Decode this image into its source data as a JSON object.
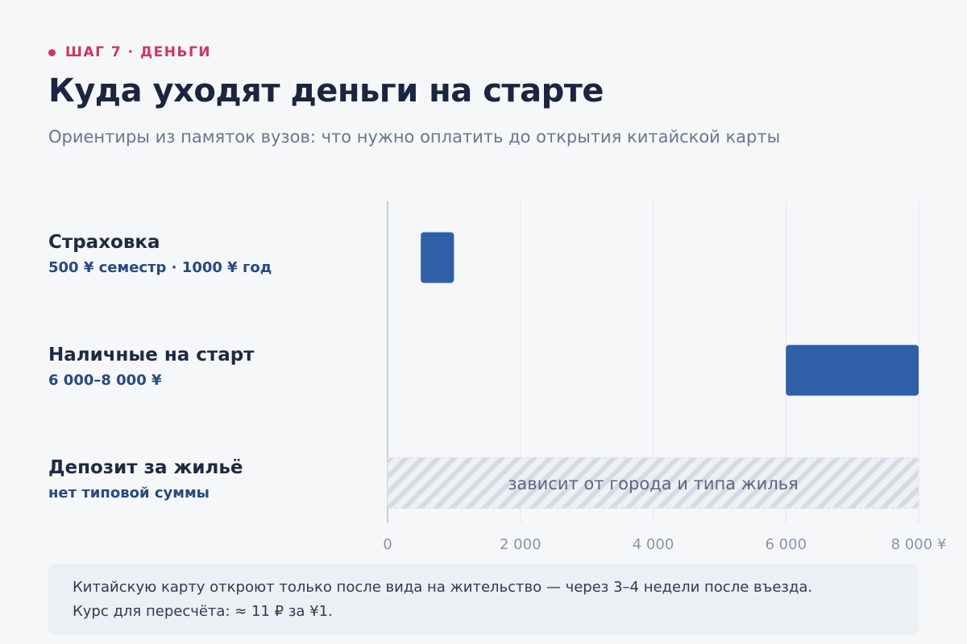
{
  "header": {
    "eyebrow": "ШАГ 7 · ДЕНЬГИ",
    "title": "Куда уходят деньги на старте",
    "subtitle": "Ориентиры из памяток вузов: что нужно оплатить до открытия китайской карты"
  },
  "colors": {
    "accent": "#d6335c",
    "bar": "#2f5fa7",
    "hatch": "#d5dae4",
    "axis": "#8a94aa"
  },
  "chart_data": {
    "type": "bar",
    "orientation": "horizontal",
    "range_bars": true,
    "xlim": [
      0,
      8000
    ],
    "xticks": [
      0,
      2000,
      4000,
      6000,
      8000
    ],
    "xtick_labels": [
      "0",
      "2 000",
      "4 000",
      "6 000",
      "8 000 ¥"
    ],
    "grid": true,
    "categories": [
      {
        "name": "Страховка",
        "sublabel": "500 ¥ семестр · 1000 ¥ год",
        "start": 500,
        "end": 1000,
        "style": "solid"
      },
      {
        "name": "Наличные на старт",
        "sublabel": "6 000–8 000 ¥",
        "start": 6000,
        "end": 8000,
        "style": "solid"
      },
      {
        "name": "Депозит за жильё",
        "sublabel": "нет типовой суммы",
        "start": 0,
        "end": 8000,
        "style": "hatched",
        "annotation": "зависит от города и типа жилья"
      }
    ]
  },
  "note": {
    "line1": "Китайскую карту откроют только после вида на жительство — через 3–4 недели после въезда.",
    "line2": "Курс для пересчёта: ≈ 11 ₽ за ¥1."
  }
}
